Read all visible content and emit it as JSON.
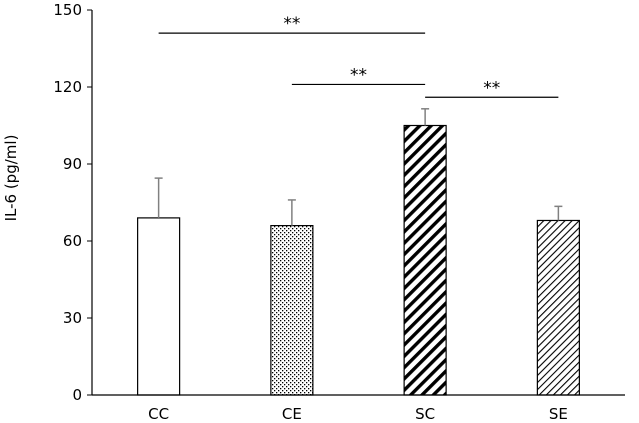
{
  "chart_data": {
    "type": "bar",
    "title": "",
    "xlabel": "",
    "ylabel": "IL-6 (pg/ml)",
    "ylim": [
      0,
      150
    ],
    "yticks": [
      0,
      30,
      60,
      90,
      120,
      150
    ],
    "categories": [
      "CC",
      "CE",
      "SC",
      "SE"
    ],
    "values": [
      69,
      66,
      105,
      68
    ],
    "error_plus": [
      15.5,
      10,
      6.5,
      5.5
    ],
    "fills": [
      "solid-white",
      "dots",
      "thick-diagonal-hatch",
      "thin-diagonal-hatch"
    ],
    "significance": [
      {
        "from": "CC",
        "to": "SC",
        "label": "**",
        "level": 141
      },
      {
        "from": "CE",
        "to": "SC",
        "label": "**",
        "level": 121
      },
      {
        "from": "SC",
        "to": "SE",
        "label": "**",
        "level": 116
      }
    ],
    "grid": false,
    "legend": "none"
  },
  "colors": {
    "bar_edge": "#000000",
    "error_bar": "#808080",
    "axis": "#000000"
  }
}
